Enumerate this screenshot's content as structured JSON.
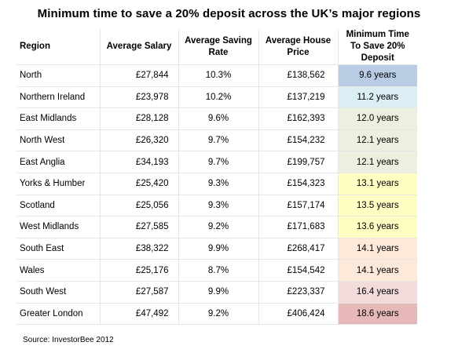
{
  "title": "Minimum time to save a 20% deposit across the UK’s major regions",
  "headers": {
    "region": "Region",
    "salary": "Average Salary",
    "rate": "Average Saving Rate",
    "price": "Average House Price",
    "min_time": "Minimum Time To Save 20% Deposit"
  },
  "rows": [
    {
      "region": "North",
      "salary": "£27,844",
      "rate": "10.3%",
      "price": "£138,562",
      "years": "9.6 years",
      "color": "#b8cce4"
    },
    {
      "region": "Northern Ireland",
      "salary": "£23,978",
      "rate": "10.2%",
      "price": "£137,219",
      "years": "11.2 years",
      "color": "#daeef3"
    },
    {
      "region": "East Midlands",
      "salary": "£28,128",
      "rate": "9.6%",
      "price": "£162,393",
      "years": "12.0 years",
      "color": "#ebf1de"
    },
    {
      "region": "North West",
      "salary": "£26,320",
      "rate": "9.7%",
      "price": "£154,232",
      "years": "12.1 years",
      "color": "#ebf1de"
    },
    {
      "region": "East Anglia",
      "salary": "£34,193",
      "rate": "9.7%",
      "price": "£199,757",
      "years": "12.1 years",
      "color": "#ebf1de"
    },
    {
      "region": "Yorks & Humber",
      "salary": "£25,420",
      "rate": "9.3%",
      "price": "£154,323",
      "years": "13.1 years",
      "color": "#ffffc4"
    },
    {
      "region": "Scotland",
      "salary": "£25,056",
      "rate": "9.3%",
      "price": "£157,174",
      "years": "13.5 years",
      "color": "#ffffc4"
    },
    {
      "region": "West Midlands",
      "salary": "£27,585",
      "rate": "9.2%",
      "price": "£171,683",
      "years": "13.6 years",
      "color": "#ffffc4"
    },
    {
      "region": "South East",
      "salary": "£38,322",
      "rate": "9.9%",
      "price": "£268,417",
      "years": "14.1 years",
      "color": "#fde9d9"
    },
    {
      "region": "Wales",
      "salary": "£25,176",
      "rate": "8.7%",
      "price": "£154,542",
      "years": "14.1 years",
      "color": "#fde9d9"
    },
    {
      "region": "South West",
      "salary": "£27,587",
      "rate": "9.9%",
      "price": "£223,337",
      "years": "16.4 years",
      "color": "#f2dcdb"
    },
    {
      "region": "Greater London",
      "salary": "£47,492",
      "rate": "9.2%",
      "price": "£406,424",
      "years": "18.6 years",
      "color": "#e6b9b8"
    }
  ],
  "source": "Source:  InvestorBee 2012"
}
